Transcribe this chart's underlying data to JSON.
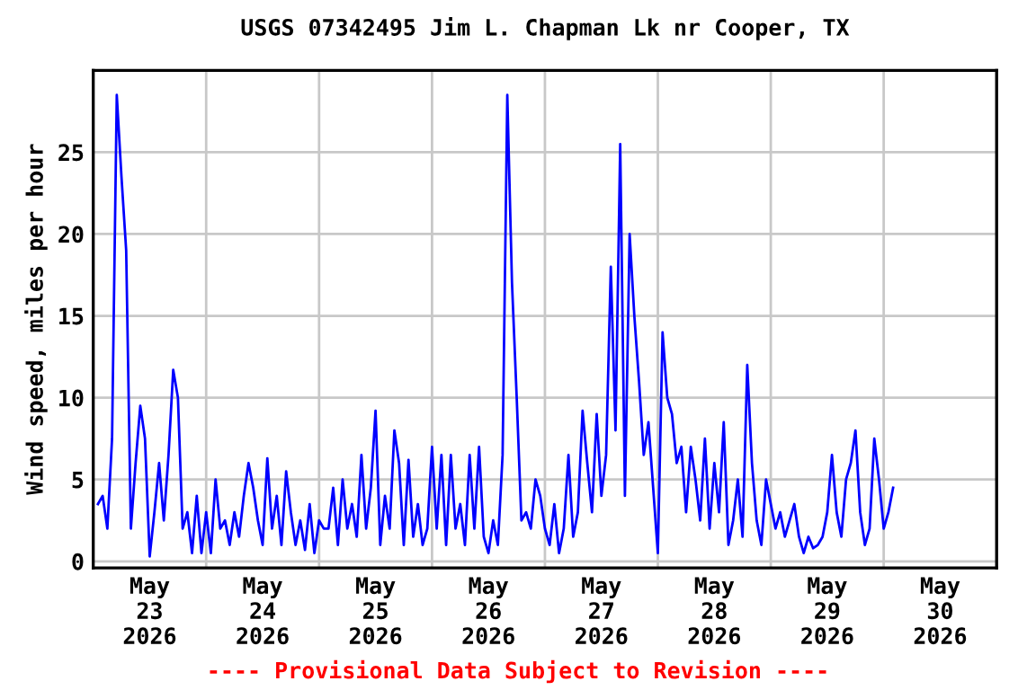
{
  "chart_data": {
    "type": "line",
    "title": "USGS 07342495 Jim L. Chapman Lk nr Cooper, TX",
    "ylabel": "Wind speed, miles per hour",
    "annotations": [
      "---- Provisional Data Subject to Revision ----"
    ],
    "x": [
      "2026-05-22T13:00",
      "2026-05-22T14:00",
      "2026-05-22T15:00",
      "2026-05-22T16:00",
      "2026-05-22T17:00",
      "2026-05-22T18:00",
      "2026-05-22T19:00",
      "2026-05-22T20:00",
      "2026-05-22T21:00",
      "2026-05-22T22:00",
      "2026-05-22T23:00",
      "2026-05-23T00:00",
      "2026-05-23T01:00",
      "2026-05-23T02:00",
      "2026-05-23T03:00",
      "2026-05-23T04:00",
      "2026-05-23T05:00",
      "2026-05-23T06:00",
      "2026-05-23T07:00",
      "2026-05-23T08:00",
      "2026-05-23T09:00",
      "2026-05-23T10:00",
      "2026-05-23T11:00",
      "2026-05-23T12:00",
      "2026-05-23T13:00",
      "2026-05-23T14:00",
      "2026-05-23T15:00",
      "2026-05-23T16:00",
      "2026-05-23T17:00",
      "2026-05-23T18:00",
      "2026-05-23T19:00",
      "2026-05-23T20:00",
      "2026-05-23T21:00",
      "2026-05-23T22:00",
      "2026-05-23T23:00",
      "2026-05-24T00:00",
      "2026-05-24T01:00",
      "2026-05-24T02:00",
      "2026-05-24T03:00",
      "2026-05-24T04:00",
      "2026-05-24T05:00",
      "2026-05-24T06:00",
      "2026-05-24T07:00",
      "2026-05-24T08:00",
      "2026-05-24T09:00",
      "2026-05-24T10:00",
      "2026-05-24T11:00",
      "2026-05-24T12:00",
      "2026-05-24T13:00",
      "2026-05-24T14:00",
      "2026-05-24T15:00",
      "2026-05-24T16:00",
      "2026-05-24T17:00",
      "2026-05-24T18:00",
      "2026-05-24T19:00",
      "2026-05-24T20:00",
      "2026-05-24T21:00",
      "2026-05-24T22:00",
      "2026-05-24T23:00",
      "2026-05-25T00:00",
      "2026-05-25T01:00",
      "2026-05-25T02:00",
      "2026-05-25T03:00",
      "2026-05-25T04:00",
      "2026-05-25T05:00",
      "2026-05-25T06:00",
      "2026-05-25T07:00",
      "2026-05-25T08:00",
      "2026-05-25T09:00",
      "2026-05-25T10:00",
      "2026-05-25T11:00",
      "2026-05-25T12:00",
      "2026-05-25T13:00",
      "2026-05-25T14:00",
      "2026-05-25T15:00",
      "2026-05-25T16:00",
      "2026-05-25T17:00",
      "2026-05-25T18:00",
      "2026-05-25T19:00",
      "2026-05-25T20:00",
      "2026-05-25T21:00",
      "2026-05-25T22:00",
      "2026-05-25T23:00",
      "2026-05-26T00:00",
      "2026-05-26T01:00",
      "2026-05-26T02:00",
      "2026-05-26T03:00",
      "2026-05-26T04:00",
      "2026-05-26T05:00",
      "2026-05-26T06:00",
      "2026-05-26T07:00",
      "2026-05-26T08:00",
      "2026-05-26T09:00",
      "2026-05-26T10:00",
      "2026-05-26T11:00",
      "2026-05-26T12:00",
      "2026-05-26T13:00",
      "2026-05-26T14:00",
      "2026-05-26T15:00",
      "2026-05-26T16:00",
      "2026-05-26T17:00",
      "2026-05-26T18:00",
      "2026-05-26T19:00",
      "2026-05-26T20:00",
      "2026-05-26T21:00",
      "2026-05-26T22:00",
      "2026-05-26T23:00",
      "2026-05-27T00:00",
      "2026-05-27T01:00",
      "2026-05-27T02:00",
      "2026-05-27T03:00",
      "2026-05-27T04:00",
      "2026-05-27T05:00",
      "2026-05-27T06:00",
      "2026-05-27T07:00",
      "2026-05-27T08:00",
      "2026-05-27T09:00",
      "2026-05-27T10:00",
      "2026-05-27T11:00",
      "2026-05-27T12:00",
      "2026-05-27T13:00",
      "2026-05-27T14:00",
      "2026-05-27T15:00",
      "2026-05-27T16:00",
      "2026-05-27T17:00",
      "2026-05-27T18:00",
      "2026-05-27T19:00",
      "2026-05-27T20:00",
      "2026-05-27T21:00",
      "2026-05-27T22:00",
      "2026-05-27T23:00",
      "2026-05-28T00:00",
      "2026-05-28T01:00",
      "2026-05-28T02:00",
      "2026-05-28T03:00",
      "2026-05-28T04:00",
      "2026-05-28T05:00",
      "2026-05-28T06:00",
      "2026-05-28T07:00",
      "2026-05-28T08:00",
      "2026-05-28T09:00",
      "2026-05-28T10:00",
      "2026-05-28T11:00",
      "2026-05-28T12:00",
      "2026-05-28T13:00",
      "2026-05-28T14:00",
      "2026-05-28T15:00",
      "2026-05-28T16:00",
      "2026-05-28T17:00",
      "2026-05-28T18:00",
      "2026-05-28T19:00",
      "2026-05-28T20:00",
      "2026-05-28T21:00",
      "2026-05-28T22:00",
      "2026-05-28T23:00",
      "2026-05-29T00:00",
      "2026-05-29T01:00",
      "2026-05-29T02:00",
      "2026-05-29T03:00",
      "2026-05-29T04:00",
      "2026-05-29T05:00",
      "2026-05-29T06:00",
      "2026-05-29T07:00",
      "2026-05-29T08:00",
      "2026-05-29T09:00",
      "2026-05-29T10:00",
      "2026-05-29T11:00",
      "2026-05-29T12:00",
      "2026-05-29T13:00",
      "2026-05-29T14:00"
    ],
    "series": [
      {
        "color": "#0000ff",
        "values": [
          3.5,
          4,
          2,
          7.5,
          28.5,
          23.5,
          19,
          2,
          6,
          9.5,
          7.5,
          0.3,
          3,
          6,
          2.5,
          6.5,
          11.7,
          10,
          2,
          3,
          0.5,
          4,
          0.5,
          3,
          0.5,
          5,
          2,
          2.5,
          1,
          3,
          1.5,
          4,
          6,
          4.5,
          2.5,
          1,
          6.3,
          2,
          4,
          1,
          5.5,
          3,
          1,
          2.5,
          0.7,
          3.5,
          0.5,
          2.5,
          2,
          2,
          4.5,
          1,
          5,
          2,
          3.5,
          1.5,
          6.5,
          2,
          4.5,
          9.2,
          1,
          4,
          2,
          8,
          6,
          1,
          6.2,
          1.5,
          3.5,
          1,
          2,
          7,
          2,
          6.5,
          1,
          6.5,
          2,
          3.5,
          1,
          6.5,
          2,
          7,
          1.5,
          0.5,
          2.5,
          1,
          6.5,
          28.5,
          17,
          10,
          2.5,
          3,
          2,
          5,
          4,
          2,
          1,
          3.5,
          0.5,
          2,
          6.5,
          1.5,
          3,
          9.2,
          6,
          3,
          9,
          4,
          6.5,
          18,
          8,
          25.5,
          4,
          20,
          15,
          11,
          6.5,
          8.5,
          4.5,
          0.5,
          14,
          10,
          9,
          6,
          7,
          3,
          7,
          5,
          2.5,
          7.5,
          2,
          6,
          3,
          8.5,
          1,
          2.5,
          5,
          1.5,
          12,
          6,
          2.5,
          1,
          5,
          3.5,
          2,
          3,
          1.5,
          2.5,
          3.5,
          1.5,
          0.5,
          1.5,
          0.8,
          1,
          1.5,
          3,
          6.5,
          3,
          1.5,
          5,
          6,
          8,
          3,
          1,
          2,
          7.5,
          5,
          2,
          3,
          4.5
        ]
      }
    ],
    "xlim": [
      "2026-05-22T12:00",
      "2026-05-30T12:00"
    ],
    "xticks": [
      {
        "value": "2026-05-23T00:00",
        "label": "May\n23\n2026"
      },
      {
        "value": "2026-05-23T12:00",
        "label": null
      },
      {
        "value": "2026-05-24T00:00",
        "label": "May\n24\n2026"
      },
      {
        "value": "2026-05-24T12:00",
        "label": null
      },
      {
        "value": "2026-05-25T00:00",
        "label": "May\n25\n2026"
      },
      {
        "value": "2026-05-25T12:00",
        "label": null
      },
      {
        "value": "2026-05-26T00:00",
        "label": "May\n26\n2026"
      },
      {
        "value": "2026-05-26T12:00",
        "label": null
      },
      {
        "value": "2026-05-27T00:00",
        "label": "May\n27\n2026"
      },
      {
        "value": "2026-05-27T12:00",
        "label": null
      },
      {
        "value": "2026-05-28T00:00",
        "label": "May\n28\n2026"
      },
      {
        "value": "2026-05-28T12:00",
        "label": null
      },
      {
        "value": "2026-05-29T00:00",
        "label": "May\n29\n2026"
      },
      {
        "value": "2026-05-29T12:00",
        "label": null
      },
      {
        "value": "2026-05-30T00:00",
        "label": "May\n30\n2026"
      }
    ],
    "ylim": [
      -0.4,
      30
    ],
    "yticks": [
      0,
      5,
      10,
      15,
      20,
      25
    ],
    "grid": true,
    "line_style": "solid"
  }
}
